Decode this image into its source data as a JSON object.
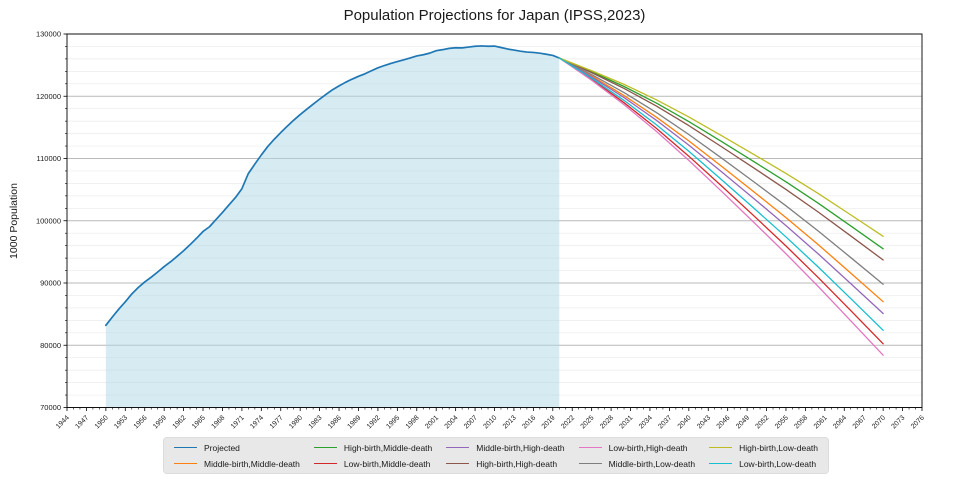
{
  "title": "Population Projections for Japan (IPSS,2023)",
  "chart_data": {
    "type": "line",
    "title": "Population Projections for Japan (IPSS,2023)",
    "xlabel": "",
    "ylabel": "1000 Population",
    "xlim": [
      1944,
      2076
    ],
    "ylim": [
      70000,
      130000
    ],
    "x_ticks": [
      1944,
      1947,
      1950,
      1953,
      1956,
      1959,
      1962,
      1965,
      1968,
      1971,
      1974,
      1977,
      1980,
      1983,
      1986,
      1989,
      1992,
      1995,
      1998,
      2001,
      2004,
      2007,
      2010,
      2013,
      2016,
      2019,
      2022,
      2025,
      2028,
      2031,
      2034,
      2037,
      2040,
      2043,
      2046,
      2049,
      2052,
      2055,
      2058,
      2061,
      2064,
      2067,
      2070,
      2073,
      2076
    ],
    "x_minor_step": 1,
    "y_ticks": [
      70000,
      80000,
      90000,
      100000,
      110000,
      120000,
      130000
    ],
    "y_minor_step": 2000,
    "grid": {
      "horizontal_major": true,
      "horizontal_minor": true,
      "vertical": false
    },
    "grid_major_color": "#b9b9b9",
    "grid_minor_color": "#ebebeb",
    "legend_position": "bottom",
    "historical_fill": {
      "series": "Projected",
      "x_from": 1950,
      "x_to": 2020,
      "color": "#add8e6",
      "opacity": 0.5
    },
    "series": [
      {
        "name": "Projected",
        "color": "#1f77b4",
        "x": [
          1950,
          1951,
          1952,
          1953,
          1954,
          1955,
          1956,
          1957,
          1958,
          1959,
          1960,
          1961,
          1962,
          1963,
          1964,
          1965,
          1966,
          1967,
          1968,
          1969,
          1970,
          1971,
          1972,
          1973,
          1974,
          1975,
          1976,
          1977,
          1978,
          1979,
          1980,
          1981,
          1982,
          1983,
          1984,
          1985,
          1986,
          1987,
          1988,
          1989,
          1990,
          1991,
          1992,
          1993,
          1994,
          1995,
          1996,
          1997,
          1998,
          1999,
          2000,
          2001,
          2002,
          2003,
          2004,
          2005,
          2006,
          2007,
          2008,
          2009,
          2010,
          2011,
          2012,
          2013,
          2014,
          2015,
          2016,
          2017,
          2018,
          2019,
          2020
        ],
        "values": [
          83200,
          84541,
          85808,
          86981,
          88239,
          89276,
          90172,
          90928,
          91767,
          92641,
          93419,
          94287,
          95181,
          96156,
          97182,
          98275,
          99036,
          100196,
          101331,
          102536,
          103720,
          105145,
          107595,
          109104,
          110573,
          111940,
          113094,
          114165,
          115190,
          116155,
          117060,
          117902,
          118728,
          119536,
          120305,
          121049,
          121660,
          122239,
          122745,
          123205,
          123611,
          124101,
          124567,
          124938,
          125265,
          125570,
          125859,
          126157,
          126472,
          126667,
          126926,
          127316,
          127486,
          127694,
          127787,
          127768,
          127901,
          128033,
          128084,
          128032,
          128057,
          127834,
          127593,
          127414,
          127237,
          127095,
          127042,
          126919,
          126749,
          126555,
          126146
        ]
      },
      {
        "name": "Middle-birth,Middle-death",
        "color": "#ff7f0e",
        "x": [
          2020,
          2025,
          2030,
          2035,
          2040,
          2045,
          2050,
          2055,
          2060,
          2065,
          2070
        ],
        "values": [
          126146,
          123262,
          120116,
          116639,
          112837,
          108801,
          104686,
          100508,
          96148,
          91592,
          86996
        ]
      },
      {
        "name": "High-birth,Middle-death",
        "color": "#2ca02c",
        "x": [
          2020,
          2025,
          2030,
          2035,
          2040,
          2045,
          2050,
          2055,
          2060,
          2065,
          2070
        ],
        "values": [
          126146,
          123937,
          121564,
          118899,
          115940,
          112766,
          109532,
          106249,
          102798,
          99162,
          95496
        ]
      },
      {
        "name": "Low-birth,Middle-death",
        "color": "#d62728",
        "x": [
          2020,
          2025,
          2030,
          2035,
          2040,
          2045,
          2050,
          2055,
          2060,
          2065,
          2070
        ],
        "values": [
          126146,
          122725,
          118965,
          114842,
          110370,
          105647,
          100832,
          95942,
          90859,
          85572,
          80236
        ]
      },
      {
        "name": "Middle-birth,High-death",
        "color": "#9467bd",
        "x": [
          2020,
          2025,
          2030,
          2035,
          2040,
          2045,
          2050,
          2055,
          2060,
          2065,
          2070
        ],
        "values": [
          126146,
          123111,
          119792,
          116134,
          112143,
          107915,
          103603,
          99225,
          94661,
          89900,
          85096
        ]
      },
      {
        "name": "High-birth,High-death",
        "color": "#8c564b",
        "x": [
          2020,
          2025,
          2030,
          2035,
          2040,
          2045,
          2050,
          2055,
          2060,
          2065,
          2070
        ],
        "values": [
          126146,
          123794,
          121257,
          118421,
          115283,
          111927,
          108506,
          105033,
          101390,
          97559,
          93696
        ]
      },
      {
        "name": "Low-birth,High-death",
        "color": "#e377c2",
        "x": [
          2020,
          2025,
          2030,
          2035,
          2040,
          2045,
          2050,
          2055,
          2060,
          2065,
          2070
        ],
        "values": [
          126146,
          122579,
          118651,
          114352,
          109698,
          104789,
          99783,
          94700,
          89419,
          83933,
          78396
        ]
      },
      {
        "name": "Middle-birth,Low-death",
        "color": "#7f7f7f",
        "x": [
          2020,
          2025,
          2030,
          2035,
          2040,
          2045,
          2050,
          2055,
          2060,
          2065,
          2070
        ],
        "values": [
          126146,
          123484,
          120593,
          117384,
          113859,
          110107,
          106282,
          102399,
          98339,
          94086,
          89796
        ]
      },
      {
        "name": "High-birth,Low-death",
        "color": "#bcbd22",
        "x": [
          2020,
          2025,
          2030,
          2035,
          2040,
          2045,
          2050,
          2055,
          2060,
          2065,
          2070
        ],
        "values": [
          126146,
          124096,
          121904,
          119431,
          116670,
          113699,
          110672,
          107600,
          104363,
          100943,
          97496
        ]
      },
      {
        "name": "Low-birth,Low-death",
        "color": "#17becf",
        "x": [
          2020,
          2025,
          2030,
          2035,
          2040,
          2045,
          2050,
          2055,
          2060,
          2065,
          2070
        ],
        "values": [
          126146,
          122897,
          119333,
          115416,
          111158,
          106655,
          102064,
          97401,
          92549,
          87495,
          82396
        ]
      }
    ]
  }
}
